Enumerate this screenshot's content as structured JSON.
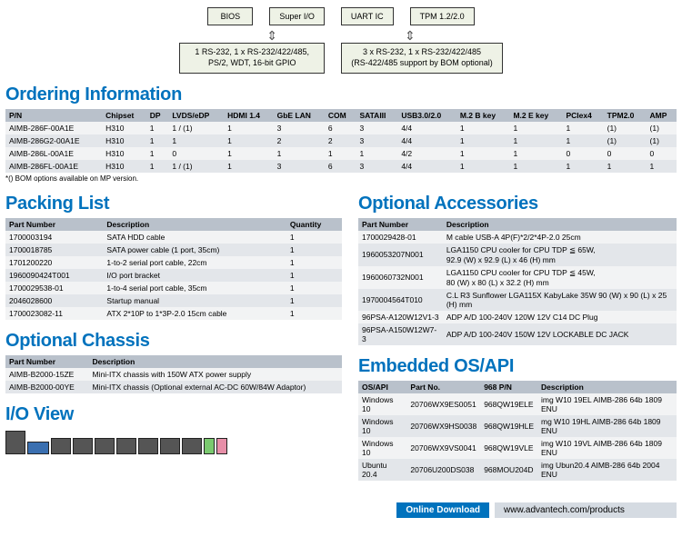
{
  "colors": {
    "accent": "#0072bd",
    "header_row": "#b9c1cb",
    "row_light": "#f2f3f4",
    "row_dark": "#e3e6ea",
    "box_fill": "#eef2e6"
  },
  "diagram": {
    "top": [
      "BIOS",
      "Super I/O",
      "UART IC",
      "TPM 1.2/2.0"
    ],
    "bottom": [
      "1 RS-232, 1 x RS-232/422/485,\nPS/2, WDT, 16-bit GPIO",
      "3 x RS-232, 1 x RS-232/422/485\n(RS-422/485 support by BOM optional)"
    ]
  },
  "ordering": {
    "title": "Ordering Information",
    "columns": [
      "P/N",
      "Chipset",
      "DP",
      "LVDS/eDP",
      "HDMI 1.4",
      "GbE LAN",
      "COM",
      "SATAIII",
      "USB3.0/2.0",
      "M.2 B key",
      "M.2 E key",
      "PCIex4",
      "TPM2.0",
      "AMP"
    ],
    "rows": [
      [
        "AIMB-286F-00A1E",
        "H310",
        "1",
        "1 / (1)",
        "1",
        "3",
        "6",
        "3",
        "4/4",
        "1",
        "1",
        "1",
        "(1)",
        "(1)"
      ],
      [
        "AIMB-286G2-00A1E",
        "H310",
        "1",
        "1",
        "1",
        "2",
        "2",
        "3",
        "4/4",
        "1",
        "1",
        "1",
        "(1)",
        "(1)"
      ],
      [
        "AIMB-286L-00A1E",
        "H310",
        "1",
        "0",
        "1",
        "1",
        "1",
        "1",
        "4/2",
        "1",
        "1",
        "0",
        "0",
        "0"
      ],
      [
        "AIMB-286FL-00A1E",
        "H310",
        "1",
        "1 / (1)",
        "1",
        "3",
        "6",
        "3",
        "4/4",
        "1",
        "1",
        "1",
        "1",
        "1"
      ]
    ],
    "footnote": "*() BOM options available on MP version."
  },
  "packing": {
    "title": "Packing List",
    "columns": [
      "Part Number",
      "Description",
      "Quantity"
    ],
    "rows": [
      [
        "1700003194",
        "SATA HDD cable",
        "1"
      ],
      [
        "1700018785",
        "SATA power cable (1 port, 35cm)",
        "1"
      ],
      [
        "1701200220",
        "1-to-2 serial port cable, 22cm",
        "1"
      ],
      [
        "1960090424T001",
        "I/O port bracket",
        "1"
      ],
      [
        "1700029538-01",
        "1-to-4 serial port cable, 35cm",
        "1"
      ],
      [
        "2046028600",
        "Startup manual",
        "1"
      ],
      [
        "1700023082-11",
        "ATX 2*10P to 1*3P-2.0 15cm cable",
        "1"
      ]
    ]
  },
  "accessories": {
    "title": "Optional Accessories",
    "columns": [
      "Part Number",
      "Description"
    ],
    "rows": [
      [
        "1700029428-01",
        "M cable USB-A 4P(F)*2/2*4P-2.0 25cm"
      ],
      [
        "1960053207N001",
        "LGA1150 CPU cooler for CPU TDP ≦ 65W,\n92.9 (W) x 92.9 (L) x 46 (H) mm"
      ],
      [
        "1960060732N001",
        "LGA1150 CPU cooler for CPU TDP ≦ 45W,\n80 (W) x 80 (L) x 32.2 (H) mm"
      ],
      [
        "1970004564T010",
        "C.L R3 Sunflower LGA115X KabyLake 35W 90 (W) x 90 (L) x 25 (H) mm"
      ],
      [
        "96PSA-A120W12V1-3",
        "ADP A/D 100-240V 120W 12V C14 DC Plug"
      ],
      [
        "96PSA-A150W12W7-3",
        "ADP A/D 100-240V 150W 12V LOCKABLE DC JACK"
      ]
    ]
  },
  "chassis": {
    "title": "Optional Chassis",
    "columns": [
      "Part Number",
      "Description"
    ],
    "rows": [
      [
        "AIMB-B2000-15ZE",
        "Mini-ITX chassis with 150W ATX power supply"
      ],
      [
        "AIMB-B2000-00YE",
        "Mini-ITX chassis (Optional external AC-DC 60W/84W Adaptor)"
      ]
    ]
  },
  "os": {
    "title": "Embedded OS/API",
    "columns": [
      "OS/API",
      "Part No.",
      "968 P/N",
      "Description"
    ],
    "rows": [
      [
        "Windows 10",
        "20706WX9ES0051",
        "968QW19ELE",
        "img W10 19EL AIMB-286 64b 1809 ENU"
      ],
      [
        "Windows 10",
        "20706WX9HS0038",
        "968QW19HLE",
        "mg W10 19HL AIMB-286 64b 1809 ENU"
      ],
      [
        "Windows 10",
        "20706WX9VS0041",
        "968QW19VLE",
        "img W10 19VL AIMB-286 64b 1809 ENU"
      ],
      [
        "Ubuntu 20.4",
        "20706U200DS038",
        "968MOU204D",
        "img Ubun20.4 AIMB-286 64b 2004 ENU"
      ]
    ]
  },
  "io_view": {
    "title": "I/O View"
  },
  "footer": {
    "label": "Online Download",
    "url": "www.advantech.com/products"
  }
}
